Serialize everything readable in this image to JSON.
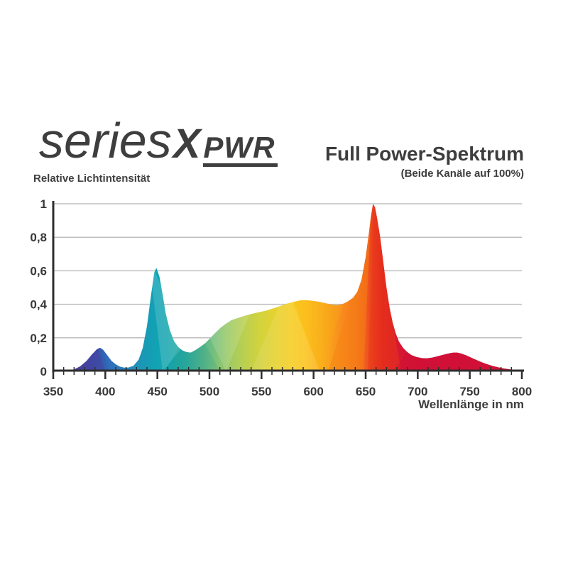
{
  "logo": {
    "series": "series",
    "x": "X",
    "pwr": "PWR"
  },
  "header": {
    "title": "Full Power-Spektrum",
    "subtitle": "(Beide Kanäle auf 100%)"
  },
  "colors": {
    "text": "#3d3d3d",
    "axis": "#2e2e2e",
    "grid": "#bfbfbf",
    "tick_label": "#383838",
    "background": "#ffffff"
  },
  "chart_data": {
    "type": "area",
    "title": "Full Power-Spektrum",
    "subtitle": "(Beide Kanäle auf 100%)",
    "ylabel": "Relative Lichtintensität",
    "xlabel": "Wellenlänge in nm",
    "xlim": [
      350,
      800
    ],
    "ylim": [
      0,
      1
    ],
    "grid": "horizontal",
    "legend": "none",
    "x_ticks_major": [
      350,
      400,
      450,
      500,
      550,
      600,
      650,
      700,
      750,
      800
    ],
    "x_tick_minor_step": 10,
    "y_ticks": [
      {
        "v": 0,
        "label": "0"
      },
      {
        "v": 0.2,
        "label": "0,2"
      },
      {
        "v": 0.4,
        "label": "0,4"
      },
      {
        "v": 0.6,
        "label": "0,6"
      },
      {
        "v": 0.8,
        "label": "0,8"
      },
      {
        "v": 1,
        "label": "1"
      }
    ],
    "peaks": [
      {
        "nm": 395,
        "value": 0.14
      },
      {
        "nm": 449,
        "value": 0.62
      },
      {
        "nm": 588,
        "value": 0.425
      },
      {
        "nm": 657,
        "value": 1.0
      },
      {
        "nm": 735,
        "value": 0.11
      }
    ],
    "points": [
      [
        350,
        0
      ],
      [
        358,
        0.001
      ],
      [
        364,
        0.004
      ],
      [
        370,
        0.012
      ],
      [
        376,
        0.03
      ],
      [
        382,
        0.062
      ],
      [
        387,
        0.1
      ],
      [
        392,
        0.132
      ],
      [
        395,
        0.141
      ],
      [
        398,
        0.128
      ],
      [
        402,
        0.095
      ],
      [
        406,
        0.062
      ],
      [
        410,
        0.042
      ],
      [
        414,
        0.028
      ],
      [
        418,
        0.022
      ],
      [
        422,
        0.022
      ],
      [
        427,
        0.032
      ],
      [
        432,
        0.07
      ],
      [
        436,
        0.14
      ],
      [
        440,
        0.27
      ],
      [
        444,
        0.46
      ],
      [
        447,
        0.59
      ],
      [
        449,
        0.618
      ],
      [
        452,
        0.565
      ],
      [
        455,
        0.46
      ],
      [
        458,
        0.345
      ],
      [
        462,
        0.245
      ],
      [
        466,
        0.18
      ],
      [
        470,
        0.145
      ],
      [
        474,
        0.125
      ],
      [
        478,
        0.115
      ],
      [
        482,
        0.112
      ],
      [
        486,
        0.125
      ],
      [
        491,
        0.145
      ],
      [
        496,
        0.168
      ],
      [
        501,
        0.2
      ],
      [
        506,
        0.232
      ],
      [
        511,
        0.262
      ],
      [
        516,
        0.285
      ],
      [
        521,
        0.305
      ],
      [
        527,
        0.318
      ],
      [
        533,
        0.33
      ],
      [
        540,
        0.342
      ],
      [
        547,
        0.352
      ],
      [
        554,
        0.362
      ],
      [
        561,
        0.375
      ],
      [
        568,
        0.39
      ],
      [
        575,
        0.405
      ],
      [
        581,
        0.415
      ],
      [
        588,
        0.425
      ],
      [
        594,
        0.424
      ],
      [
        600,
        0.42
      ],
      [
        606,
        0.414
      ],
      [
        612,
        0.406
      ],
      [
        618,
        0.398
      ],
      [
        623,
        0.395
      ],
      [
        628,
        0.402
      ],
      [
        633,
        0.418
      ],
      [
        638,
        0.44
      ],
      [
        642,
        0.475
      ],
      [
        646,
        0.545
      ],
      [
        650,
        0.68
      ],
      [
        653,
        0.82
      ],
      [
        655,
        0.92
      ],
      [
        657,
        1.0
      ],
      [
        659,
        0.98
      ],
      [
        661,
        0.915
      ],
      [
        664,
        0.8
      ],
      [
        667,
        0.65
      ],
      [
        670,
        0.5
      ],
      [
        673,
        0.38
      ],
      [
        676,
        0.29
      ],
      [
        679,
        0.225
      ],
      [
        682,
        0.178
      ],
      [
        686,
        0.14
      ],
      [
        690,
        0.115
      ],
      [
        694,
        0.097
      ],
      [
        699,
        0.085
      ],
      [
        704,
        0.079
      ],
      [
        709,
        0.078
      ],
      [
        714,
        0.082
      ],
      [
        719,
        0.09
      ],
      [
        724,
        0.098
      ],
      [
        729,
        0.106
      ],
      [
        734,
        0.112
      ],
      [
        738,
        0.112
      ],
      [
        742,
        0.106
      ],
      [
        747,
        0.094
      ],
      [
        752,
        0.08
      ],
      [
        757,
        0.066
      ],
      [
        762,
        0.053
      ],
      [
        767,
        0.042
      ],
      [
        772,
        0.032
      ],
      [
        777,
        0.024
      ],
      [
        782,
        0.018
      ],
      [
        787,
        0.013
      ],
      [
        792,
        0.009
      ],
      [
        796,
        0.007
      ],
      [
        800,
        0.005
      ]
    ],
    "gradient_stops": [
      {
        "nm": 350,
        "color": "#544099"
      },
      {
        "nm": 372,
        "color": "#4a3e99"
      },
      {
        "nm": 385,
        "color": "#3c4ba6"
      },
      {
        "nm": 395,
        "color": "#345bb0"
      },
      {
        "nm": 405,
        "color": "#2f6ab6"
      },
      {
        "nm": 418,
        "color": "#2a7fb9"
      },
      {
        "nm": 433,
        "color": "#1c96b6"
      },
      {
        "nm": 449,
        "color": "#10a3b4"
      },
      {
        "nm": 462,
        "color": "#18a6ad"
      },
      {
        "nm": 478,
        "color": "#2daa9e"
      },
      {
        "nm": 492,
        "color": "#52b48d"
      },
      {
        "nm": 505,
        "color": "#79c07c"
      },
      {
        "nm": 518,
        "color": "#9bca66"
      },
      {
        "nm": 532,
        "color": "#b8cf52"
      },
      {
        "nm": 548,
        "color": "#d2d33e"
      },
      {
        "nm": 565,
        "color": "#e8d22e"
      },
      {
        "nm": 580,
        "color": "#f7cd25"
      },
      {
        "nm": 592,
        "color": "#fcc521"
      },
      {
        "nm": 605,
        "color": "#fbb31e"
      },
      {
        "nm": 618,
        "color": "#f99c1d"
      },
      {
        "nm": 630,
        "color": "#f8871e"
      },
      {
        "nm": 641,
        "color": "#f4731f"
      },
      {
        "nm": 650,
        "color": "#f05c20"
      },
      {
        "nm": 658,
        "color": "#e93a1e"
      },
      {
        "nm": 666,
        "color": "#e22420"
      },
      {
        "nm": 676,
        "color": "#d91a2b"
      },
      {
        "nm": 688,
        "color": "#d41535"
      },
      {
        "nm": 705,
        "color": "#d21238"
      },
      {
        "nm": 800,
        "color": "#d01238"
      }
    ],
    "facets": [
      {
        "points": [
          [
            372,
            0
          ],
          [
            392,
            0.16
          ],
          [
            400,
            0
          ]
        ],
        "color": "#4a3c9c",
        "opacity": 0.45
      },
      {
        "points": [
          [
            396,
            0.15
          ],
          [
            404,
            0
          ],
          [
            428,
            0
          ],
          [
            438,
            0.3
          ]
        ],
        "color": "#2f7ec2",
        "opacity": 0.25
      },
      {
        "points": [
          [
            441,
            0.7
          ],
          [
            455,
            0
          ],
          [
            476,
            0.16
          ]
        ],
        "color": "#ffffff",
        "opacity": 0.15
      },
      {
        "points": [
          [
            458,
            0
          ],
          [
            484,
            0.3
          ],
          [
            510,
            0
          ]
        ],
        "color": "#0b8a78",
        "opacity": 0.12
      },
      {
        "points": [
          [
            488,
            0.35
          ],
          [
            516,
            0
          ],
          [
            544,
            0.42
          ]
        ],
        "color": "#ffffff",
        "opacity": 0.13
      },
      {
        "points": [
          [
            540,
            0
          ],
          [
            574,
            0.5
          ],
          [
            606,
            0
          ]
        ],
        "color": "#ffffff",
        "opacity": 0.1
      },
      {
        "points": [
          [
            576,
            0.5
          ],
          [
            606,
            0
          ],
          [
            634,
            0.5
          ]
        ],
        "color": "#f9b013",
        "opacity": 0.25
      },
      {
        "points": [
          [
            614,
            0
          ],
          [
            642,
            0.55
          ],
          [
            656,
            1.05
          ],
          [
            648,
            0
          ]
        ],
        "color": "#f58211",
        "opacity": 0.5
      },
      {
        "points": [
          [
            652,
            0
          ],
          [
            659,
            1.05
          ],
          [
            672,
            0.45
          ],
          [
            684,
            0
          ]
        ],
        "color": "#e8391b",
        "opacity": 0.45
      },
      {
        "points": [
          [
            676,
            0
          ],
          [
            700,
            0.2
          ],
          [
            745,
            0.18
          ],
          [
            800,
            0.12
          ],
          [
            800,
            0
          ]
        ],
        "color": "#cf0f33",
        "opacity": 0.35
      }
    ]
  }
}
